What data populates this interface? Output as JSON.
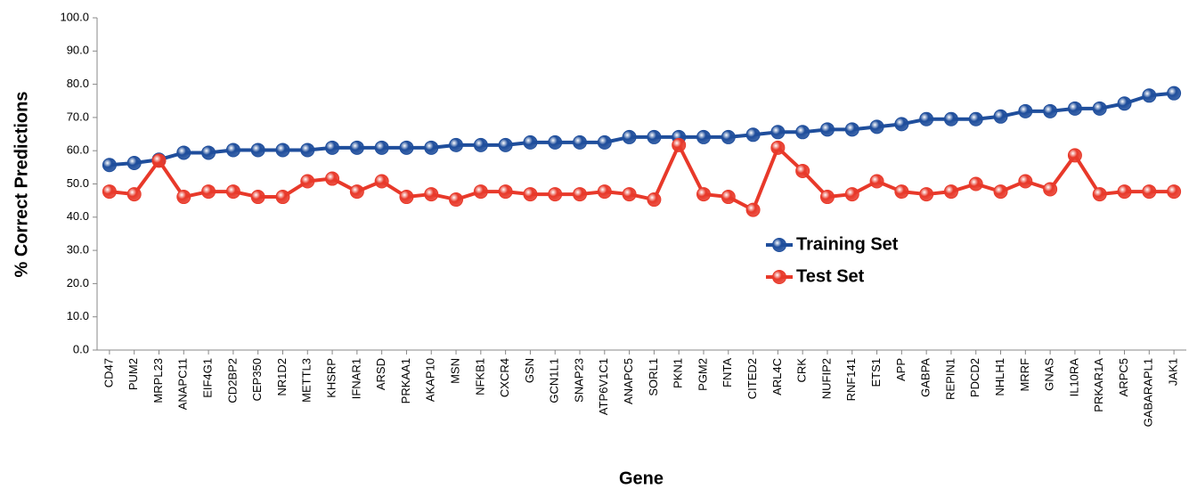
{
  "chart_data": {
    "type": "line",
    "x_label": "Gene",
    "y_label": "% Correct Predictions",
    "categories": [
      "CD47",
      "PUM2",
      "MRPL23",
      "ANAPC11",
      "EIF4G1",
      "CD2BP2",
      "CEP350",
      "NR1D2",
      "METTL3",
      "KHSRP",
      "IFNAR1",
      "ARSD",
      "PRKAA1",
      "AKAP10",
      "MSN",
      "NFKB1",
      "CXCR4",
      "GSN",
      "GCN1L1",
      "SNAP23",
      "ATP6V1C1",
      "ANAPC5",
      "SORL1",
      "PKN1",
      "PGM2",
      "FNTA",
      "CITED2",
      "ARL4C",
      "CRK",
      "NUFIP2",
      "RNF141",
      "ETS1",
      "APP",
      "GABPA",
      "REPIN1",
      "PDCD2",
      "NHLH1",
      "MRRF",
      "GNAS",
      "IL10RA",
      "PRKAR1A",
      "ARPC5",
      "GABARAPL1",
      "JAK1"
    ],
    "series": [
      {
        "name": "Training Set",
        "color": "#1f4e9c",
        "values": [
          55.7,
          56.3,
          57.3,
          59.4,
          59.4,
          60.2,
          60.2,
          60.2,
          60.2,
          60.9,
          60.9,
          60.9,
          60.9,
          60.9,
          61.7,
          61.7,
          61.7,
          62.5,
          62.5,
          62.5,
          62.5,
          64.1,
          64.1,
          64.1,
          64.1,
          64.1,
          64.8,
          65.6,
          65.6,
          66.4,
          66.4,
          67.2,
          68.0,
          69.5,
          69.5,
          69.5,
          70.3,
          71.9,
          71.9,
          72.7,
          72.7,
          74.2,
          76.6,
          77.3
        ]
      },
      {
        "name": "Test Set",
        "color": "#e8392a",
        "values": [
          47.7,
          46.9,
          57.0,
          46.1,
          47.7,
          47.7,
          46.1,
          46.1,
          50.8,
          51.6,
          47.7,
          50.8,
          46.1,
          46.9,
          45.3,
          47.7,
          47.7,
          46.9,
          46.9,
          46.9,
          47.7,
          46.9,
          45.3,
          61.7,
          46.9,
          46.1,
          42.2,
          60.9,
          53.9,
          46.1,
          46.9,
          50.8,
          47.7,
          46.9,
          47.7,
          50.0,
          47.7,
          50.8,
          48.4,
          58.6,
          46.9,
          47.7,
          47.7,
          47.7
        ]
      }
    ],
    "ylim": [
      0,
      100
    ],
    "yticks": [
      {
        "value": 0,
        "label": "0.0"
      },
      {
        "value": 10,
        "label": "10.0"
      },
      {
        "value": 20,
        "label": "20.0"
      },
      {
        "value": 30,
        "label": "30.0"
      },
      {
        "value": 40,
        "label": "40.0"
      },
      {
        "value": 50,
        "label": "50.0"
      },
      {
        "value": 60,
        "label": "60.0"
      },
      {
        "value": 70,
        "label": "70.0"
      },
      {
        "value": 80,
        "label": "80.0"
      },
      {
        "value": 90,
        "label": "90.0"
      },
      {
        "value": 100,
        "label": "100.0"
      }
    ],
    "grid": false,
    "legend_position": "right"
  }
}
